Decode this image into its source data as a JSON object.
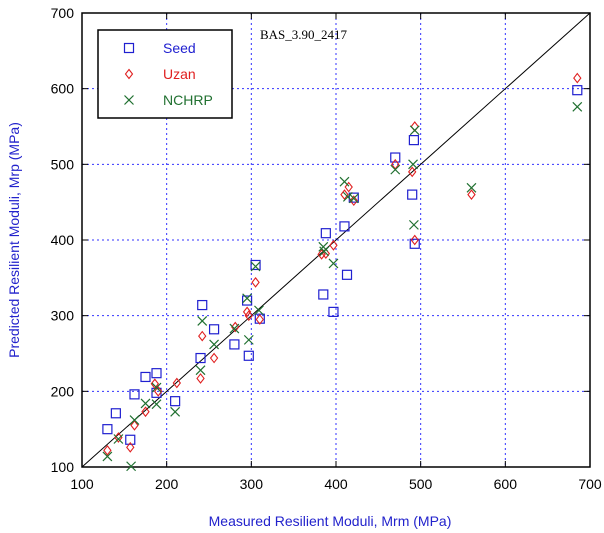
{
  "chart_data": {
    "type": "scatter",
    "title": "",
    "annotation": "BAS_3.90_2417",
    "xlabel": "Measured Resilient Moduli, Mrm (MPa)",
    "ylabel": "Predicted Resilient Moduli, Mrp (MPa)",
    "xlim": [
      100,
      700
    ],
    "ylim": [
      100,
      700
    ],
    "xticks": [
      "100",
      "200",
      "300",
      "400",
      "500",
      "600",
      "700"
    ],
    "yticks": [
      "100",
      "200",
      "300",
      "400",
      "500",
      "600",
      "700"
    ],
    "grid": true,
    "legend_position": "top-left",
    "reference_line": {
      "from": [
        100,
        100
      ],
      "to": [
        700,
        700
      ]
    },
    "colors": {
      "axis_label": "#2222cc",
      "grid": "#3333ff",
      "line": "#000000"
    },
    "series": [
      {
        "name": "Seed",
        "marker": "square",
        "color": "#2020d0",
        "points": [
          [
            130,
            150
          ],
          [
            140,
            171
          ],
          [
            157,
            136
          ],
          [
            162,
            196
          ],
          [
            175,
            219
          ],
          [
            188,
            224
          ],
          [
            188,
            198
          ],
          [
            210,
            187
          ],
          [
            240,
            244
          ],
          [
            242,
            314
          ],
          [
            256,
            282
          ],
          [
            280,
            262
          ],
          [
            295,
            320
          ],
          [
            297,
            247
          ],
          [
            305,
            367
          ],
          [
            310,
            296
          ],
          [
            385,
            328
          ],
          [
            388,
            409
          ],
          [
            397,
            305
          ],
          [
            410,
            418
          ],
          [
            413,
            354
          ],
          [
            421,
            456
          ],
          [
            470,
            509
          ],
          [
            490,
            460
          ],
          [
            492,
            532
          ],
          [
            493,
            395
          ],
          [
            685,
            598
          ]
        ]
      },
      {
        "name": "Uzan",
        "marker": "diamond",
        "color": "#e02020",
        "points": [
          [
            130,
            122
          ],
          [
            143,
            139
          ],
          [
            157,
            126
          ],
          [
            162,
            155
          ],
          [
            175,
            173
          ],
          [
            186,
            210
          ],
          [
            190,
            200
          ],
          [
            212,
            211
          ],
          [
            240,
            217
          ],
          [
            242,
            273
          ],
          [
            256,
            244
          ],
          [
            281,
            285
          ],
          [
            295,
            305
          ],
          [
            297,
            300
          ],
          [
            305,
            344
          ],
          [
            310,
            295
          ],
          [
            383,
            381
          ],
          [
            388,
            382
          ],
          [
            397,
            393
          ],
          [
            410,
            460
          ],
          [
            415,
            470
          ],
          [
            421,
            452
          ],
          [
            470,
            500
          ],
          [
            490,
            490
          ],
          [
            493,
            550
          ],
          [
            493,
            400
          ],
          [
            560,
            460
          ],
          [
            685,
            614
          ]
        ]
      },
      {
        "name": "NCHRP",
        "marker": "x",
        "color": "#207030",
        "points": [
          [
            130,
            114
          ],
          [
            143,
            137
          ],
          [
            158,
            101
          ],
          [
            162,
            162
          ],
          [
            175,
            184
          ],
          [
            188,
            183
          ],
          [
            188,
            205
          ],
          [
            210,
            173
          ],
          [
            240,
            228
          ],
          [
            242,
            293
          ],
          [
            256,
            262
          ],
          [
            280,
            283
          ],
          [
            295,
            323
          ],
          [
            297,
            268
          ],
          [
            305,
            365
          ],
          [
            309,
            307
          ],
          [
            385,
            391
          ],
          [
            386,
            385
          ],
          [
            397,
            369
          ],
          [
            410,
            477
          ],
          [
            414,
            457
          ],
          [
            421,
            455
          ],
          [
            470,
            493
          ],
          [
            491,
            500
          ],
          [
            492,
            420
          ],
          [
            493,
            545
          ],
          [
            560,
            469
          ],
          [
            685,
            576
          ]
        ]
      }
    ]
  }
}
